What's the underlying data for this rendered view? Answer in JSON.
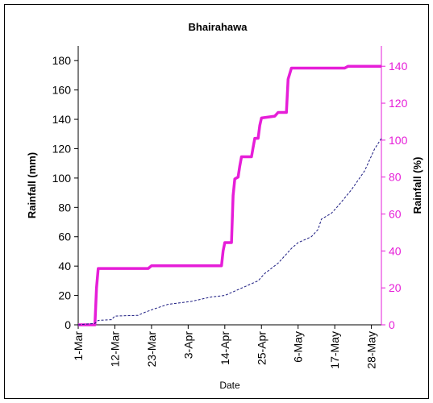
{
  "chart_data": {
    "type": "line",
    "title": "Bhairahawa",
    "xlabel": "Date",
    "ylabel": "Rainfall (mm)",
    "y2label": "Rainfall (%)",
    "xlim": [
      0,
      91
    ],
    "xticks": [
      {
        "value": 0,
        "label": "1-Mar"
      },
      {
        "value": 11,
        "label": "12-Mar"
      },
      {
        "value": 22,
        "label": "23-Mar"
      },
      {
        "value": 33,
        "label": "3-Apr"
      },
      {
        "value": 44,
        "label": "14-Apr"
      },
      {
        "value": 55,
        "label": "25-Apr"
      },
      {
        "value": 66,
        "label": "6-May"
      },
      {
        "value": 77,
        "label": "17-May"
      },
      {
        "value": 88,
        "label": "28-May"
      }
    ],
    "ylim": [
      0,
      190
    ],
    "yticks": [
      0,
      20,
      40,
      60,
      80,
      100,
      120,
      140,
      160,
      180
    ],
    "y2lim": [
      0,
      151
    ],
    "y2ticks": [
      0,
      20,
      40,
      60,
      80,
      100,
      120,
      140
    ],
    "y2color": "#e61ed8",
    "series": [
      {
        "color": "#e61ed8",
        "axis": "y2",
        "dash": false,
        "x": [
          0,
          5,
          5.5,
          6,
          21,
          22,
          43,
          43.5,
          44,
          46,
          46.5,
          47,
          48,
          48.5,
          49,
          52,
          52.5,
          53,
          54,
          54.5,
          55,
          59,
          60,
          62.5,
          63,
          64,
          80,
          81,
          91
        ],
        "values": [
          0,
          0,
          20,
          30.5,
          30.5,
          32,
          32,
          40,
          44.5,
          44.5,
          70,
          79,
          80,
          86,
          91,
          91,
          96,
          101,
          101,
          108,
          112,
          113,
          115,
          115,
          133,
          139,
          139,
          140,
          140
        ]
      },
      {
        "color": "#1a1a80",
        "axis": "y",
        "dash": true,
        "x": [
          0,
          5,
          6,
          10,
          11,
          18,
          20,
          23,
          27,
          34,
          40,
          44,
          48,
          50,
          52,
          54,
          56,
          60,
          62,
          64,
          66,
          68,
          70,
          72,
          73,
          76,
          78,
          82,
          86,
          89,
          91
        ],
        "values": [
          0,
          1,
          3,
          3.5,
          6,
          6.5,
          8.5,
          11,
          14,
          16,
          19,
          20,
          24,
          26,
          28,
          30,
          35,
          42,
          47,
          52,
          56,
          58,
          60,
          65,
          72,
          76,
          81,
          92,
          105,
          120,
          127
        ]
      }
    ]
  }
}
